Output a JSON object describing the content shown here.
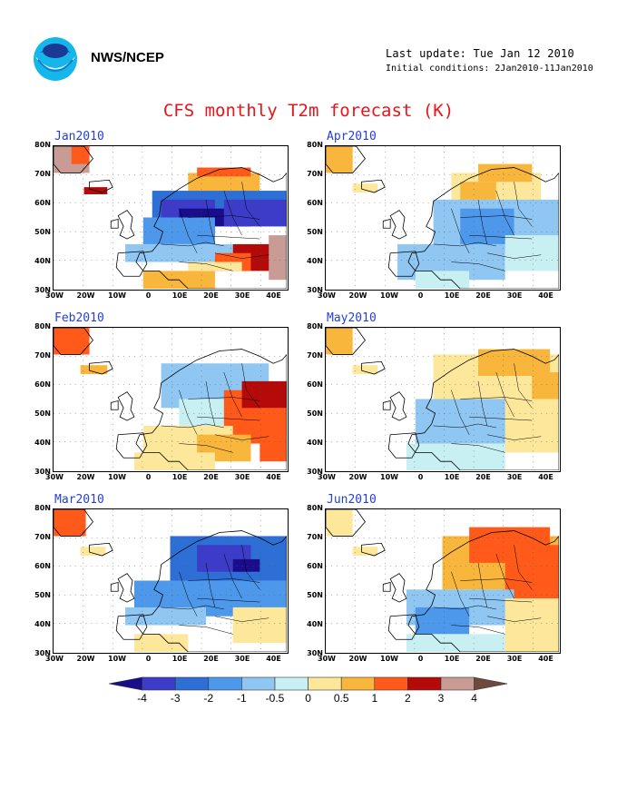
{
  "header": {
    "org": "NWS/NCEP",
    "last_update": "Last update: Tue Jan 12 2010",
    "initial_conditions": "Initial conditions: 2Jan2010-11Jan2010",
    "logo_icon": "noaa-logo-icon"
  },
  "title": "CFS monthly T2m forecast (K)",
  "panels": [
    {
      "id": "jan",
      "title": "Jan2010"
    },
    {
      "id": "apr",
      "title": "Apr2010"
    },
    {
      "id": "feb",
      "title": "Feb2010"
    },
    {
      "id": "may",
      "title": "May2010"
    },
    {
      "id": "mar",
      "title": "Mar2010"
    },
    {
      "id": "jun",
      "title": "Jun2010"
    }
  ],
  "axes": {
    "lat_labels": [
      "80N",
      "70N",
      "60N",
      "50N",
      "40N",
      "30N"
    ],
    "lon_labels": [
      "30W",
      "20W",
      "10W",
      "0",
      "10E",
      "20E",
      "30E",
      "40E"
    ]
  },
  "colorbar": {
    "labels": [
      "-4",
      "-3",
      "-2",
      "-1",
      "-0.5",
      "0",
      "0.5",
      "1",
      "2",
      "3",
      "4"
    ],
    "colors": [
      "#1a0d8c",
      "#3c3cc8",
      "#2e6fd6",
      "#4e98ec",
      "#8fc6f2",
      "#c8f0f2",
      "#fde79a",
      "#f8b63c",
      "#ff5a1a",
      "#b40a0a",
      "#c89c94",
      "#6e4a3e"
    ]
  }
}
